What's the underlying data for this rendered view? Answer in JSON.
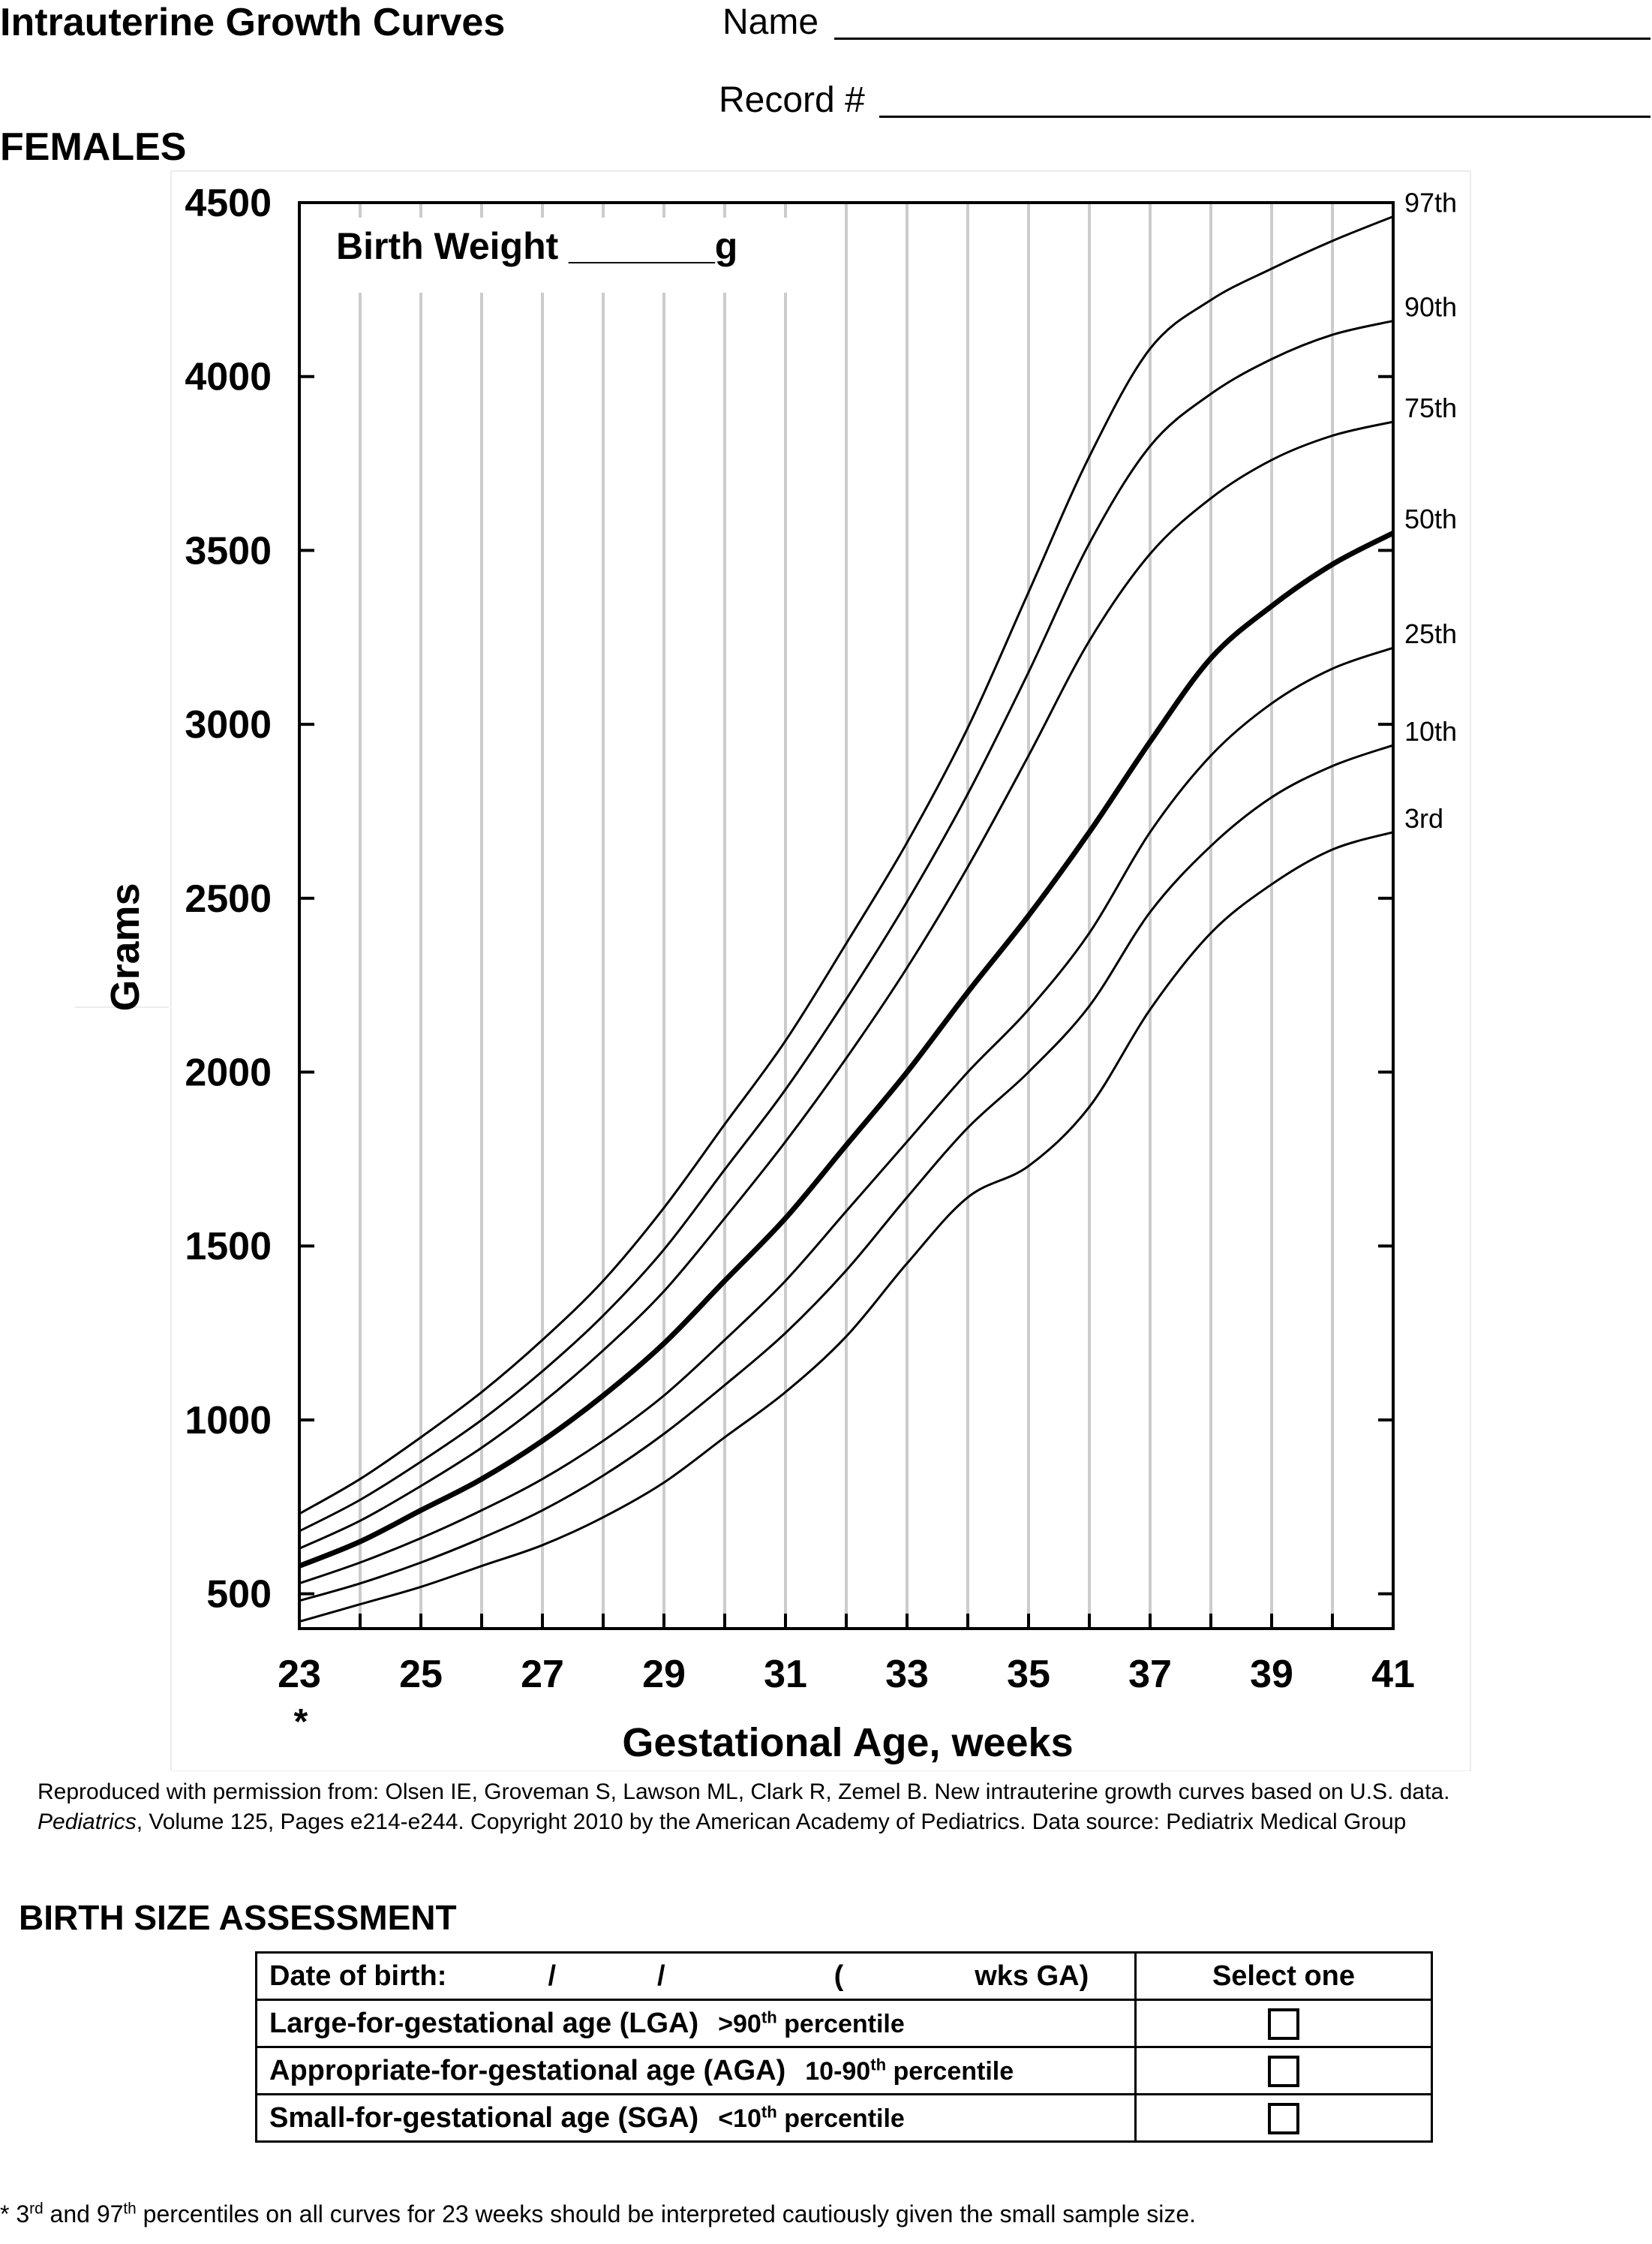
{
  "header": {
    "title": "Intrauterine Growth Curves",
    "name_label": "Name",
    "record_label": "Record #",
    "section": "FEMALES"
  },
  "chart_data": {
    "type": "line",
    "title": "",
    "xlabel": "Gestational Age, weeks",
    "ylabel": "Grams",
    "annotation": "Birth Weight _______g",
    "x_tick_labels": [
      "23",
      "25",
      "27",
      "29",
      "31",
      "33",
      "35",
      "37",
      "39",
      "41"
    ],
    "x_note": "*",
    "y_tick_labels": [
      "500",
      "1000",
      "1500",
      "2000",
      "2500",
      "3000",
      "3500",
      "4000",
      "4500"
    ],
    "xlim": [
      23,
      41
    ],
    "ylim": [
      400,
      4500
    ],
    "grid": true,
    "x": [
      23,
      24,
      25,
      26,
      27,
      28,
      29,
      30,
      31,
      32,
      33,
      34,
      35,
      36,
      37,
      38,
      39,
      40,
      41
    ],
    "series": [
      {
        "name": "97th",
        "values": [
          730,
          830,
          950,
          1080,
          1230,
          1400,
          1610,
          1850,
          2090,
          2370,
          2660,
          2990,
          3380,
          3770,
          4080,
          4220,
          4310,
          4390,
          4460
        ]
      },
      {
        "name": "90th",
        "values": [
          680,
          770,
          880,
          1000,
          1140,
          1300,
          1490,
          1720,
          1950,
          2210,
          2490,
          2800,
          3150,
          3520,
          3800,
          3950,
          4050,
          4120,
          4160
        ]
      },
      {
        "name": "75th",
        "values": [
          630,
          710,
          810,
          920,
          1050,
          1200,
          1370,
          1580,
          1800,
          2040,
          2300,
          2590,
          2910,
          3240,
          3490,
          3650,
          3760,
          3830,
          3870
        ]
      },
      {
        "name": "50th",
        "values": [
          580,
          650,
          740,
          830,
          940,
          1070,
          1220,
          1400,
          1580,
          1790,
          2000,
          2230,
          2450,
          2690,
          2950,
          3190,
          3340,
          3460,
          3550
        ]
      },
      {
        "name": "25th",
        "values": [
          530,
          590,
          660,
          740,
          830,
          940,
          1070,
          1230,
          1400,
          1600,
          1800,
          2000,
          2180,
          2400,
          2690,
          2910,
          3060,
          3160,
          3220
        ]
      },
      {
        "name": "10th",
        "values": [
          480,
          530,
          590,
          660,
          740,
          840,
          960,
          1100,
          1250,
          1430,
          1640,
          1840,
          2000,
          2190,
          2460,
          2650,
          2790,
          2880,
          2940
        ]
      },
      {
        "name": "3rd",
        "values": [
          420,
          470,
          520,
          580,
          640,
          720,
          820,
          950,
          1080,
          1240,
          1450,
          1640,
          1730,
          1900,
          2180,
          2400,
          2540,
          2640,
          2690
        ]
      }
    ]
  },
  "credit": {
    "line1": "Reproduced with permission from: Olsen IE, Groveman S, Lawson ML, Clark R, Zemel B. New intrauterine growth curves based on U.S. data.",
    "journal": "Pediatrics",
    "line2": ", Volume 125, Pages e214-e244. Copyright 2010 by the American Academy of Pediatrics.  Data source: Pediatrix Medical Group"
  },
  "assessment": {
    "title": "BIRTH SIZE ASSESSMENT",
    "dob_label": "Date of birth:",
    "dob_slash": "/",
    "dob_paren_open": "(",
    "dob_ga": "wks GA)",
    "select_header": "Select one",
    "rows": [
      {
        "label": "Large-for-gestational age (LGA)",
        "range_pre": ">90",
        "range_sup": "th",
        "range_post": " percentile"
      },
      {
        "label": "Appropriate-for-gestational age (AGA)",
        "range_pre": "10-90",
        "range_sup": "th",
        "range_post": " percentile"
      },
      {
        "label": "Small-for-gestational age (SGA)",
        "range_pre": "<10",
        "range_sup": "th",
        "range_post": " percentile"
      }
    ]
  },
  "footnote": {
    "star": "* 3",
    "sup1": "rd",
    "mid": " and 97",
    "sup2": "th",
    "rest": " percentiles on all curves for 23 weeks should be interpreted cautiously given the small sample size."
  }
}
